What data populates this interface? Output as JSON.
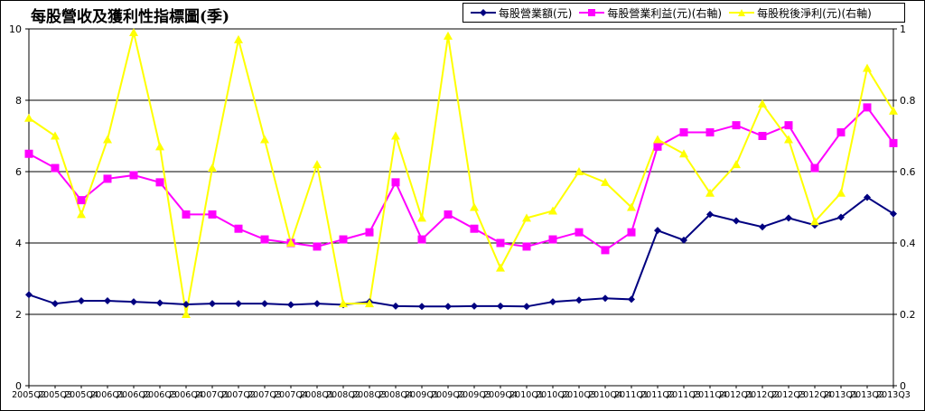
{
  "chart_data": {
    "type": "line",
    "title": "每股營收及獲利性指標圖(季)",
    "x": [
      "2005Q2",
      "2005Q3",
      "2005Q4",
      "2006Q1",
      "2006Q2",
      "2006Q3",
      "2006Q4",
      "2007Q1",
      "2007Q2",
      "2007Q3",
      "2007Q4",
      "2008Q1",
      "2008Q2",
      "2008Q3",
      "2008Q4",
      "2009Q1",
      "2009Q2",
      "2009Q3",
      "2009Q4",
      "2010Q1",
      "2010Q2",
      "2010Q3",
      "2010Q4",
      "2011Q1",
      "2011Q2",
      "2011Q3",
      "2011Q4",
      "2012Q1",
      "2012Q2",
      "2012Q3",
      "2012Q4",
      "2013Q1",
      "2013Q2",
      "2013Q3"
    ],
    "left_axis": {
      "min": 0,
      "max": 10,
      "ticks": [
        "0",
        "2",
        "4",
        "6",
        "8",
        "10"
      ]
    },
    "right_axis": {
      "min": 0,
      "max": 1,
      "ticks": [
        "0",
        "0.2",
        "0.4",
        "0.6",
        "0.8",
        "1"
      ]
    },
    "grid": true,
    "legend_position": "top-right",
    "series": [
      {
        "name": "每股營業額(元)",
        "axis": "left",
        "color": "#000080",
        "marker": "diamond",
        "values": [
          2.55,
          2.3,
          2.38,
          2.38,
          2.35,
          2.32,
          2.28,
          2.3,
          2.3,
          2.3,
          2.27,
          2.3,
          2.27,
          2.35,
          2.23,
          2.22,
          2.22,
          2.23,
          2.23,
          2.22,
          2.35,
          2.4,
          2.45,
          2.42,
          4.35,
          4.08,
          4.8,
          4.62,
          4.45,
          4.7,
          4.5,
          4.72,
          5.28,
          4.82
        ]
      },
      {
        "name": "每股營業利益(元)(右軸)",
        "axis": "right",
        "color": "#ff00ff",
        "marker": "square",
        "values": [
          0.65,
          0.61,
          0.52,
          0.58,
          0.59,
          0.57,
          0.48,
          0.48,
          0.44,
          0.41,
          0.4,
          0.39,
          0.41,
          0.43,
          0.57,
          0.41,
          0.48,
          0.44,
          0.4,
          0.39,
          0.41,
          0.43,
          0.38,
          0.43,
          0.67,
          0.71,
          0.71,
          0.73,
          0.7,
          0.73,
          0.61,
          0.71,
          0.78,
          0.68
        ]
      },
      {
        "name": "每股稅後淨利(元)(右軸)",
        "axis": "right",
        "color": "#ffff00",
        "marker": "triangle",
        "values": [
          0.75,
          0.7,
          0.48,
          0.69,
          0.99,
          0.67,
          0.2,
          0.61,
          0.97,
          0.69,
          0.4,
          0.62,
          0.23,
          0.23,
          0.7,
          0.47,
          0.98,
          0.5,
          0.33,
          0.47,
          0.49,
          0.6,
          0.57,
          0.5,
          0.69,
          0.65,
          0.54,
          0.62,
          0.79,
          0.69,
          0.46,
          0.54,
          0.89,
          0.77
        ]
      }
    ]
  }
}
